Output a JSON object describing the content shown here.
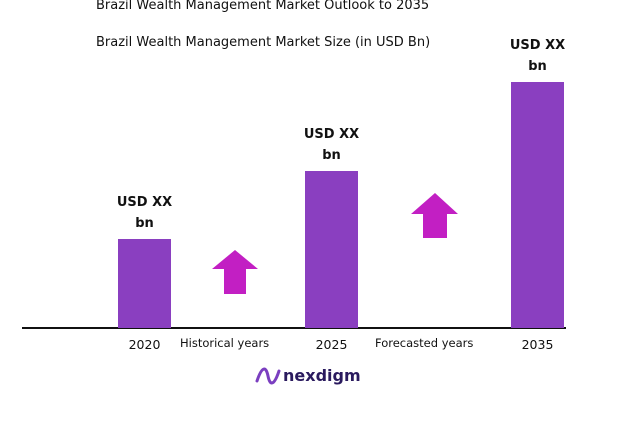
{
  "chart_data": {
    "type": "bar",
    "title": "Brazil Wealth Management Market Outlook to 2035",
    "subtitle": "Brazil Wealth Management Market Size (in USD Bn)",
    "categories": [
      "2020",
      "2025",
      "2035"
    ],
    "values": [
      89,
      157,
      246
    ],
    "value_labels": [
      "USD XX bn",
      "USD XX bn",
      "USD XX bn"
    ],
    "color": "#8a3fc0",
    "annotations": [
      "Historical years",
      "Forecasted years"
    ],
    "brand": "nexdigm"
  }
}
